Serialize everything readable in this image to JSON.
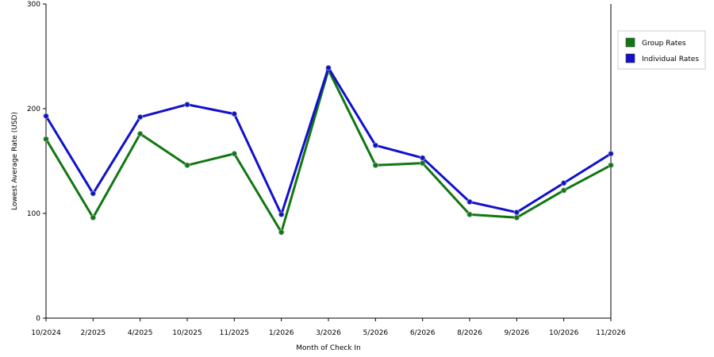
{
  "chart_data": {
    "type": "line",
    "title": "",
    "xlabel": "Month of Check In",
    "ylabel": "Lowest Average Rate (USD)",
    "ylim": [
      0,
      300
    ],
    "yticks": [
      0,
      100,
      200,
      300
    ],
    "grid": "horizontal-dashed",
    "legend_position": "top-right",
    "categories": [
      "10/2024",
      "2/2025",
      "4/2025",
      "10/2025",
      "11/2025",
      "1/2026",
      "3/2026",
      "5/2026",
      "6/2026",
      "8/2026",
      "9/2026",
      "10/2026",
      "11/2026"
    ],
    "series": [
      {
        "name": "Group Rates",
        "color": "#117711",
        "values": [
          171,
          96,
          176,
          146,
          157,
          82,
          237,
          146,
          148,
          99,
          96,
          122,
          146
        ]
      },
      {
        "name": "Individual Rates",
        "color": "#1111cc",
        "values": [
          193,
          119,
          192,
          204,
          195,
          99,
          239,
          165,
          153,
          111,
          101,
          129,
          157
        ]
      }
    ]
  }
}
